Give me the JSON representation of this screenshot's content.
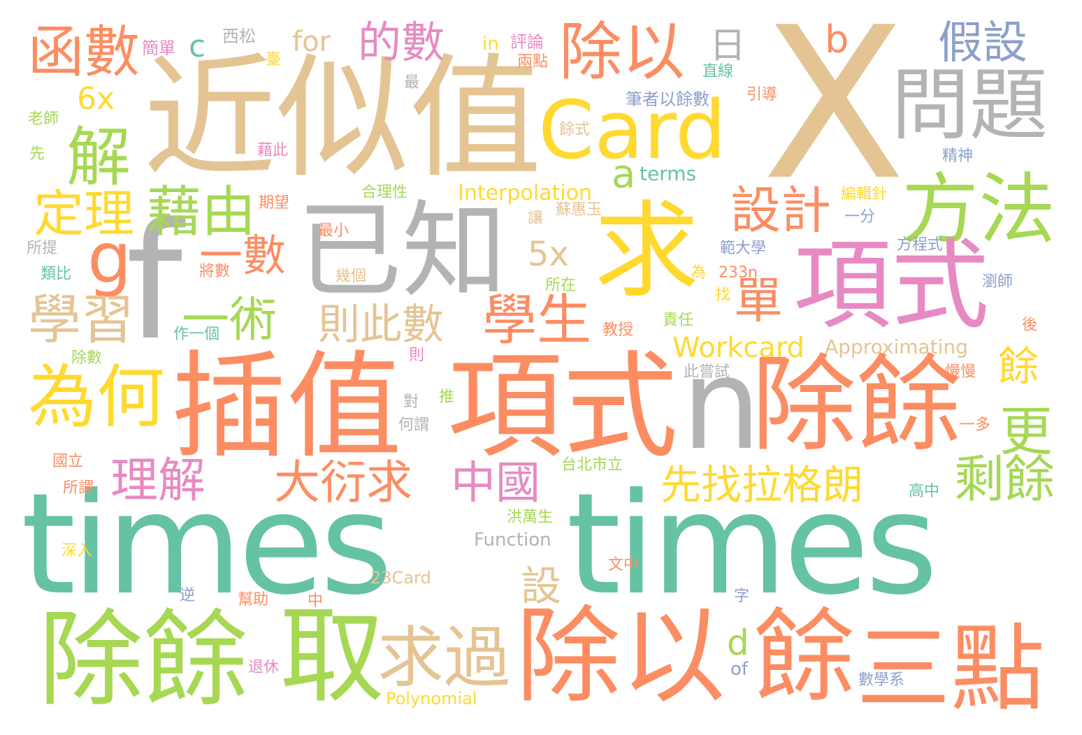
{
  "palette": {
    "teal": "#66c2a5",
    "orange": "#fc8d62",
    "blue": "#8da0cb",
    "pink": "#e78ac3",
    "green": "#a6d854",
    "yellow": "#ffd92f",
    "tan": "#e5c494",
    "gray": "#b3b3b3"
  },
  "words": [
    {
      "text": "times",
      "color": "#66c2a5"
    },
    {
      "text": "times",
      "color": "#66c2a5"
    },
    {
      "text": "X",
      "color": "#e5c494"
    },
    {
      "text": "近似值",
      "color": "#e5c494"
    },
    {
      "text": "f",
      "color": "#b3b3b3"
    },
    {
      "text": "已知",
      "color": "#b3b3b3"
    },
    {
      "text": "求",
      "color": "#ffd92f"
    },
    {
      "text": "Card",
      "color": "#ffd92f"
    },
    {
      "text": "除以",
      "color": "#fc8d62"
    },
    {
      "text": "問題",
      "color": "#b3b3b3"
    },
    {
      "text": "方法",
      "color": "#a6d854"
    },
    {
      "text": "項式",
      "color": "#e78ac3"
    },
    {
      "text": "插值",
      "color": "#fc8d62"
    },
    {
      "text": "項式",
      "color": "#fc8d62"
    },
    {
      "text": "n",
      "color": "#b3b3b3"
    },
    {
      "text": "除餘",
      "color": "#fc8d62"
    },
    {
      "text": "除餘",
      "color": "#a6d854"
    },
    {
      "text": "取",
      "color": "#a6d854"
    },
    {
      "text": "除以",
      "color": "#fc8d62"
    },
    {
      "text": "餘",
      "color": "#fc8d62"
    },
    {
      "text": "三點",
      "color": "#fc8d62"
    },
    {
      "text": "求過",
      "color": "#e5c494"
    },
    {
      "text": "函數",
      "color": "#fc8d62"
    },
    {
      "text": "的數",
      "color": "#e78ac3"
    },
    {
      "text": "假設",
      "color": "#8da0cb"
    },
    {
      "text": "解",
      "color": "#a6d854"
    },
    {
      "text": "定理",
      "color": "#ffd92f"
    },
    {
      "text": "藉由",
      "color": "#a6d854"
    },
    {
      "text": "g",
      "color": "#fc8d62"
    },
    {
      "text": "學習",
      "color": "#e5c494"
    },
    {
      "text": "為何",
      "color": "#ffd92f"
    },
    {
      "text": "一數",
      "color": "#fc8d62"
    },
    {
      "text": "一術",
      "color": "#a6d854"
    },
    {
      "text": "則此數",
      "color": "#e5c494"
    },
    {
      "text": "學生",
      "color": "#fc8d62"
    },
    {
      "text": "單",
      "color": "#fc8d62"
    },
    {
      "text": "設計",
      "color": "#fc8d62"
    },
    {
      "text": "5x",
      "color": "#e5c494"
    },
    {
      "text": "6x",
      "color": "#ffd92f"
    },
    {
      "text": "a",
      "color": "#a6d854"
    },
    {
      "text": "terms",
      "color": "#66c2a5"
    },
    {
      "text": "Interpolation",
      "color": "#ffd92f"
    },
    {
      "text": "Workcard",
      "color": "#ffd92f"
    },
    {
      "text": "Approximating",
      "color": "#e5c494"
    },
    {
      "text": "餘",
      "color": "#ffd92f"
    },
    {
      "text": "更",
      "color": "#a6d854"
    },
    {
      "text": "剩餘",
      "color": "#a6d854"
    },
    {
      "text": "理解",
      "color": "#e78ac3"
    },
    {
      "text": "大衍求",
      "color": "#fc8d62"
    },
    {
      "text": "中國",
      "color": "#e78ac3"
    },
    {
      "text": "先找拉格朗",
      "color": "#ffd92f"
    },
    {
      "text": "設",
      "color": "#e5c494"
    },
    {
      "text": "d",
      "color": "#a6d854"
    },
    {
      "text": "of",
      "color": "#8da0cb"
    },
    {
      "text": "Function",
      "color": "#b3b3b3"
    },
    {
      "text": "23Card",
      "color": "#e5c494"
    },
    {
      "text": "Polynomial",
      "color": "#ffd92f"
    },
    {
      "text": "日",
      "color": "#b3b3b3"
    },
    {
      "text": "b",
      "color": "#fc8d62"
    },
    {
      "text": "c",
      "color": "#66c2a5"
    },
    {
      "text": "for",
      "color": "#e5c494"
    },
    {
      "text": "簡單",
      "color": "#e78ac3"
    },
    {
      "text": "西松",
      "color": "#b3b3b3"
    },
    {
      "text": "in",
      "color": "#ffd92f"
    },
    {
      "text": "評論",
      "color": "#e78ac3"
    },
    {
      "text": "臺",
      "color": "#ffd92f"
    },
    {
      "text": "兩點",
      "color": "#fc8d62"
    },
    {
      "text": "直線",
      "color": "#66c2a5"
    },
    {
      "text": "最",
      "color": "#b3b3b3"
    },
    {
      "text": "筆者以餘數",
      "color": "#8da0cb"
    },
    {
      "text": "引導",
      "color": "#fc8d62"
    },
    {
      "text": "老師",
      "color": "#a6d854"
    },
    {
      "text": "餘式",
      "color": "#e5c494"
    },
    {
      "text": "精神",
      "color": "#8da0cb"
    },
    {
      "text": "先",
      "color": "#a6d854"
    },
    {
      "text": "藉此",
      "color": "#e78ac3"
    },
    {
      "text": "合理性",
      "color": "#a6d854"
    },
    {
      "text": "編輯針",
      "color": "#ffd92f"
    },
    {
      "text": "期望",
      "color": "#fc8d62"
    },
    {
      "text": "蘇惠玉",
      "color": "#e5c494"
    },
    {
      "text": "讓",
      "color": "#e5c494"
    },
    {
      "text": "一分",
      "color": "#8da0cb"
    },
    {
      "text": "最小",
      "color": "#fc8d62"
    },
    {
      "text": "所提",
      "color": "#b3b3b3"
    },
    {
      "text": "範大學",
      "color": "#8da0cb"
    },
    {
      "text": "方程式",
      "color": "#8da0cb"
    },
    {
      "text": "類比",
      "color": "#66c2a5"
    },
    {
      "text": "將數",
      "color": "#fc8d62"
    },
    {
      "text": "幾個",
      "color": "#e5c494"
    },
    {
      "text": "所在",
      "color": "#a6d854"
    },
    {
      "text": "為",
      "color": "#ffd92f"
    },
    {
      "text": "233n",
      "color": "#fc8d62"
    },
    {
      "text": "瀏師",
      "color": "#8da0cb"
    },
    {
      "text": "找",
      "color": "#ffd92f"
    },
    {
      "text": "作一個",
      "color": "#66c2a5"
    },
    {
      "text": "教授",
      "color": "#fc8d62"
    },
    {
      "text": "責任",
      "color": "#a6d854"
    },
    {
      "text": "後",
      "color": "#fc8d62"
    },
    {
      "text": "除數",
      "color": "#a6d854"
    },
    {
      "text": "則",
      "color": "#e78ac3"
    },
    {
      "text": "此嘗試",
      "color": "#b3b3b3"
    },
    {
      "text": "慢慢",
      "color": "#fc8d62"
    },
    {
      "text": "推",
      "color": "#a6d854"
    },
    {
      "text": "對",
      "color": "#b3b3b3"
    },
    {
      "text": "何謂",
      "color": "#b3b3b3"
    },
    {
      "text": "一多",
      "color": "#fc8d62"
    },
    {
      "text": "國立",
      "color": "#fc8d62"
    },
    {
      "text": "台北市立",
      "color": "#a6d854"
    },
    {
      "text": "所謂",
      "color": "#fc8d62"
    },
    {
      "text": "高中",
      "color": "#66c2a5"
    },
    {
      "text": "洪萬生",
      "color": "#a6d854"
    },
    {
      "text": "深入",
      "color": "#ffd92f"
    },
    {
      "text": "文中",
      "color": "#fc8d62"
    },
    {
      "text": "逆",
      "color": "#8da0cb"
    },
    {
      "text": "幫助",
      "color": "#fc8d62"
    },
    {
      "text": "中",
      "color": "#fc8d62"
    },
    {
      "text": "字",
      "color": "#8da0cb"
    },
    {
      "text": "退休",
      "color": "#e78ac3"
    },
    {
      "text": "數學系",
      "color": "#8da0cb"
    }
  ]
}
